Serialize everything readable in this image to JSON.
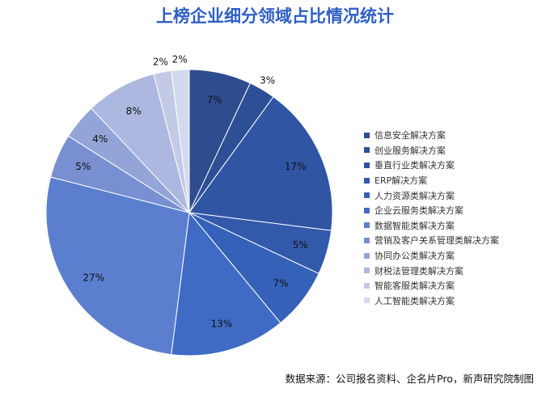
{
  "chart_data": {
    "type": "pie",
    "title": "上榜企业细分领域占比情况统计",
    "categories": [
      "信息安全解决方案",
      "创业服务解决方案",
      "垂直行业类解决方案",
      "ERP解决方案",
      "人力资源类解决方案",
      "企业云服务类解决方案",
      "数据智能类解决方案",
      "营销及客户关系管理类解决方案",
      "协同办公类解决方案",
      "财税法管理类解决方案",
      "智能客服类解决方案",
      "人工智能类解决方案"
    ],
    "values": [
      7,
      3,
      17,
      5,
      7,
      13,
      27,
      5,
      4,
      8,
      2,
      2
    ],
    "labels": [
      "7%",
      "3%",
      "17%",
      "5%",
      "7%",
      "13%",
      "27%",
      "5%",
      "4%",
      "8%",
      "2%",
      "2%"
    ],
    "colors": [
      "#2e4d8f",
      "#2d4f95",
      "#2f55a3",
      "#3359ab",
      "#3562b8",
      "#3f6bc4",
      "#5b7fce",
      "#7890d2",
      "#93a4d8",
      "#adb8e0",
      "#c2cae6",
      "#d3d9ef"
    ],
    "legend_position": "right",
    "source": "数据来源：公司报名资料、企名片Pro，新声研究院制图"
  }
}
